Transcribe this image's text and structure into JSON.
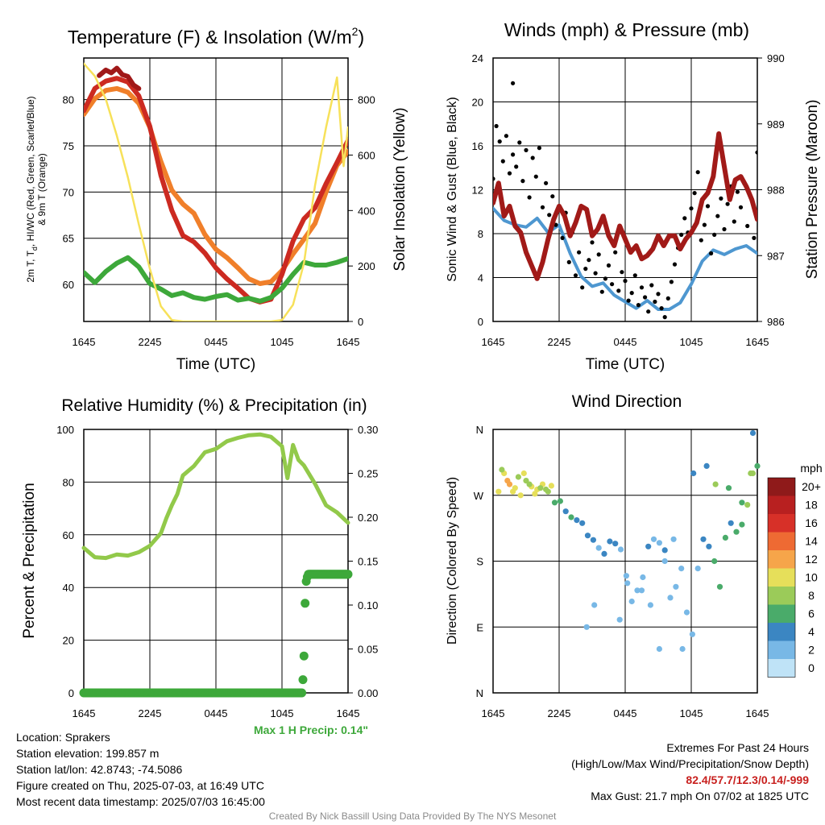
{
  "time_ticks": [
    "1645",
    "2245",
    "0445",
    "1045",
    "1645"
  ],
  "colors": {
    "temp_2m": "#cc2a21",
    "dewpoint": "#3da83a",
    "feels_like": "#a01818",
    "temp_9m": "#f07f2a",
    "insolation": "#f7e15a",
    "sonic_wind": "#4e97d0",
    "gust": "#000000",
    "pressure": "#a11a18",
    "rh": "#92c94a",
    "precip": "#3da83a"
  },
  "chart_data": [
    {
      "type": "line",
      "title": "Temperature (F) & Insolation (W/m",
      "title_sup": "2",
      "title_end": ")",
      "xlabel": "Time (UTC)",
      "ylabel_left_line1": "2m T, T",
      "ylabel_left_sub": "d",
      "ylabel_left_rest": ", HI/WC (Red, Green, Scarlet/Blue)",
      "ylabel_left_line2": "& 9m T (Orange)",
      "ylabel_right": "Solar Insolation (Yellow)",
      "x_range_hours": [
        0,
        24
      ],
      "ylim_left": [
        56,
        84.5
      ],
      "yticks_left": [
        60,
        65,
        70,
        75,
        80
      ],
      "ylim_right": [
        0,
        950
      ],
      "yticks_right": [
        0,
        200,
        400,
        600,
        800
      ],
      "series": [
        {
          "key": "temp_9m",
          "x": [
            0,
            1,
            2,
            3,
            4,
            5,
            6,
            6.5,
            7,
            8,
            9,
            10,
            11,
            12,
            13,
            14,
            15,
            16,
            17,
            18,
            19,
            20,
            21,
            22,
            23,
            24
          ],
          "y": [
            78.4,
            80.1,
            81,
            81.2,
            80.8,
            79.6,
            77,
            75.1,
            73.3,
            70.2,
            68.7,
            67.7,
            65.4,
            63.8,
            62.9,
            61.8,
            60.6,
            60.1,
            60.3,
            61.5,
            63.3,
            64.9,
            66.6,
            70,
            72.9,
            74.4
          ]
        },
        {
          "key": "temp_2m",
          "x": [
            0,
            1,
            2,
            3,
            4,
            5,
            6,
            6.5,
            7,
            8,
            9,
            10,
            11,
            12,
            13,
            14,
            15,
            16,
            17,
            18,
            19,
            20,
            21,
            22,
            23,
            24
          ],
          "y": [
            78.8,
            81.2,
            82,
            82.3,
            81.9,
            80.4,
            77.1,
            74.5,
            71.8,
            68,
            65.3,
            64.6,
            63.4,
            61.8,
            60.6,
            59.6,
            58.5,
            58.1,
            58.4,
            61.1,
            64.7,
            67.1,
            68.3,
            70.9,
            73.2,
            75.6
          ]
        },
        {
          "key": "dewpoint",
          "x": [
            0,
            1,
            2,
            3,
            4,
            5,
            6,
            7,
            8,
            9,
            10,
            11,
            12,
            13,
            14,
            15,
            16,
            17,
            18,
            19,
            20,
            21,
            22,
            23,
            24
          ],
          "y": [
            61.3,
            60.2,
            61.4,
            62.3,
            62.9,
            61.9,
            60.1,
            59.5,
            58.8,
            59.1,
            58.6,
            58.4,
            58.7,
            58.9,
            58.3,
            58.5,
            58.2,
            58.6,
            59.6,
            61.1,
            62.4,
            62.1,
            62.1,
            62.4,
            62.8
          ]
        },
        {
          "key": "feels_like",
          "x": [
            1.4,
            2,
            2.5,
            3,
            3.5,
            4,
            4.5,
            5
          ],
          "y": [
            82.6,
            83.2,
            82.9,
            83.4,
            82.7,
            82.5,
            81.6,
            81.2
          ]
        },
        {
          "key": "insolation",
          "axis": "right",
          "x": [
            0,
            1,
            2,
            3,
            4,
            5,
            6,
            7,
            8,
            9,
            10,
            11,
            12,
            13,
            14,
            15,
            16,
            17,
            18,
            19,
            20,
            21,
            22,
            23,
            23.6,
            24
          ],
          "y": [
            930,
            885,
            802,
            670,
            520,
            350,
            190,
            55,
            5,
            0,
            0,
            0,
            0,
            0,
            0,
            0,
            0,
            0,
            5,
            60,
            210,
            490,
            700,
            880,
            560,
            700
          ]
        }
      ]
    },
    {
      "type": "line",
      "title": "Winds (mph) & Pressure (mb)",
      "xlabel": "Time (UTC)",
      "ylabel_left": "Sonic Wind & Gust (Blue, Black)",
      "ylabel_right": "Station Pressure (Maroon)",
      "x_range_hours": [
        0,
        24
      ],
      "ylim_left": [
        0,
        24
      ],
      "yticks_left": [
        0,
        4,
        8,
        12,
        16,
        20,
        24
      ],
      "ylim_right": [
        986,
        990
      ],
      "yticks_right": [
        986,
        987,
        988,
        989,
        990
      ],
      "series": [
        {
          "key": "sonic_wind",
          "x": [
            0,
            1,
            2,
            3,
            4,
            5,
            6,
            7,
            8,
            9,
            10,
            11,
            12,
            13,
            14,
            15,
            16,
            17,
            18,
            19,
            20,
            21,
            22,
            23,
            24
          ],
          "y": [
            10.3,
            9.2,
            8.8,
            8.6,
            9.4,
            8.1,
            8.8,
            6.2,
            4.1,
            3.2,
            3.5,
            2.4,
            1.8,
            1.2,
            1.9,
            1.1,
            1.1,
            1.7,
            3.4,
            5.5,
            6.5,
            6.1,
            6.6,
            6.9,
            6.2
          ]
        },
        {
          "key": "gust",
          "x": [
            0,
            0.3,
            0.6,
            0.9,
            1.2,
            1.5,
            1.8,
            2.1,
            2.4,
            2.7,
            3,
            3.3,
            3.6,
            3.9,
            4.2,
            4.5,
            4.8,
            5.1,
            5.4,
            5.7,
            6,
            6.3,
            6.6,
            6.9,
            7.2,
            7.5,
            7.8,
            8.1,
            8.4,
            8.7,
            9,
            9.3,
            9.6,
            9.9,
            10.2,
            10.5,
            10.8,
            11.1,
            11.4,
            11.7,
            12,
            12.3,
            12.6,
            12.9,
            13.2,
            13.5,
            13.8,
            14.1,
            14.4,
            14.7,
            15,
            15.3,
            15.6,
            15.9,
            16.2,
            16.5,
            16.8,
            17.1,
            17.4,
            17.7,
            18,
            18.3,
            18.6,
            18.9,
            19.2,
            19.5,
            19.8,
            20.1,
            20.4,
            20.7,
            21,
            21.3,
            21.6,
            21.9,
            22.2,
            22.5,
            22.8,
            23.1,
            23.4,
            23.7,
            24,
            1.8
          ],
          "y": [
            13,
            17.8,
            16.4,
            14.6,
            16.9,
            13.5,
            15.2,
            14.1,
            16.3,
            12.8,
            15.6,
            11.3,
            14.9,
            13.2,
            15.8,
            10.4,
            12.6,
            9.7,
            11.4,
            8.8,
            10.2,
            7.6,
            9.9,
            5.4,
            8.1,
            4.2,
            6.3,
            3.1,
            4.8,
            5.6,
            7.2,
            4.4,
            6.1,
            2.7,
            3.9,
            5.1,
            3.4,
            6.3,
            2.8,
            4.5,
            3.7,
            1.9,
            2.6,
            4.2,
            1.5,
            3.1,
            2.2,
            0.9,
            3.3,
            1.8,
            2.5,
            1.2,
            0.4,
            2.1,
            3.6,
            5.2,
            6.7,
            7.9,
            9.4,
            8.1,
            10.3,
            11.7,
            13.6,
            7.4,
            8.8,
            10.5,
            6.2,
            7.9,
            9.6,
            11.2,
            8.4,
            10.7,
            12.3,
            9.1,
            11.8,
            10.4,
            12.6,
            8.7,
            11.3,
            7.6,
            15.4,
            21.7
          ]
        },
        {
          "key": "pressure",
          "axis": "right",
          "x": [
            0,
            0.5,
            1,
            1.5,
            2,
            2.5,
            3,
            3.5,
            4,
            4.5,
            5,
            5.5,
            6,
            6.5,
            7,
            7.5,
            8,
            8.5,
            9,
            9.5,
            10,
            10.5,
            11,
            11.5,
            12,
            12.5,
            13,
            13.5,
            14,
            14.5,
            15,
            15.5,
            16,
            16.5,
            17,
            17.5,
            18,
            18.5,
            19,
            19.5,
            20,
            20.5,
            21,
            21.5,
            22,
            22.5,
            23,
            23.5,
            24
          ],
          "y": [
            987.8,
            988.1,
            987.6,
            987.75,
            987.45,
            987.35,
            987.05,
            986.85,
            986.65,
            986.9,
            987.25,
            987.55,
            987.75,
            987.6,
            987.3,
            987.5,
            987.75,
            987.7,
            987.3,
            987.4,
            987.6,
            987.3,
            987.15,
            987.45,
            987.25,
            987.05,
            987.15,
            986.95,
            987.0,
            987.1,
            987.3,
            987.15,
            987.3,
            987.3,
            987.1,
            987.25,
            987.35,
            987.5,
            987.85,
            987.95,
            988.2,
            988.85,
            988.35,
            987.85,
            988.15,
            988.2,
            988.05,
            987.85,
            987.55
          ]
        }
      ]
    },
    {
      "type": "line",
      "title": "Relative Humidity (%) & Precipitation (in)",
      "xlabel": "",
      "ylabel_left": "Percent & Precipitation",
      "x_range_hours": [
        0,
        24
      ],
      "ylim_left": [
        0,
        100
      ],
      "yticks_left": [
        0,
        20,
        40,
        60,
        80,
        100
      ],
      "ylim_right": [
        0,
        0.3
      ],
      "yticks_right": [
        "0.00",
        "0.05",
        "0.10",
        "0.15",
        "0.20",
        "0.25",
        "0.30"
      ],
      "annotation": "Max 1 H Precip: 0.14\"",
      "series": [
        {
          "key": "rh",
          "x": [
            0,
            1,
            2,
            3,
            4,
            5,
            6,
            7,
            7.5,
            8,
            8.5,
            9,
            10,
            11,
            12,
            13,
            14,
            15,
            16,
            17,
            18,
            18.5,
            19,
            19.5,
            20,
            21,
            22,
            23,
            24
          ],
          "y": [
            55,
            51.5,
            51.2,
            52.5,
            52.1,
            53.4,
            55.8,
            60.6,
            66.3,
            71.2,
            75.5,
            82.5,
            86.1,
            91.3,
            92.6,
            95.5,
            96.8,
            97.8,
            98.1,
            97.2,
            93.6,
            81.5,
            94.1,
            88.4,
            86.3,
            79.4,
            71.2,
            68.5,
            64.6
          ]
        },
        {
          "key": "precip",
          "axis": "right",
          "x": [
            0,
            19.8,
            19.9,
            20.0,
            20.1,
            20.2,
            20.3,
            20.4,
            20.5,
            24
          ],
          "y": [
            0,
            0,
            0.015,
            0.042,
            0.102,
            0.127,
            0.132,
            0.135,
            0.135,
            0.135
          ]
        }
      ]
    },
    {
      "type": "scatter",
      "title": "Wind Direction",
      "ylabel_left": "Direction (Colored By Speed)",
      "x_range_hours": [
        0,
        24
      ],
      "yticks_left": [
        "N",
        "E",
        "S",
        "W",
        "N"
      ],
      "ylim_left": [
        0,
        360
      ],
      "legend_title": "mph",
      "legend_labels": [
        "20+",
        "18",
        "16",
        "14",
        "12",
        "10",
        "8",
        "6",
        "4",
        "2",
        "0"
      ],
      "legend_colors": [
        "#8f1a1a",
        "#b82020",
        "#d73028",
        "#ee6a33",
        "#f6a54a",
        "#e6df5a",
        "#9bcb59",
        "#4aab6a",
        "#3b86c2",
        "#78b8e6",
        "#bfe3f7"
      ],
      "points": {
        "x": [
          0.5,
          1,
          1.5,
          2,
          2.5,
          3,
          3.5,
          4,
          4.5,
          5,
          0.8,
          1.3,
          1.8,
          2.3,
          2.8,
          3.3,
          3.8,
          4.3,
          4.8,
          5.3,
          5.6,
          6.1,
          6.6,
          7.1,
          7.6,
          8.1,
          8.6,
          9.1,
          9.6,
          10.1,
          10.6,
          11.1,
          11.6,
          12.1,
          12.6,
          13.1,
          13.6,
          14.1,
          14.6,
          15.1,
          15.6,
          16.1,
          16.6,
          17.1,
          17.6,
          18.1,
          18.6,
          19.1,
          19.6,
          20.1,
          20.6,
          21.1,
          21.6,
          22.1,
          22.6,
          23.1,
          23.6,
          24,
          8.5,
          9.2,
          11.5,
          12.2,
          13.5,
          14.3,
          15.1,
          15.6,
          16.4,
          17.2,
          18.2,
          19.4,
          20.2,
          21.4,
          22.6,
          23.4,
          23.6
        ],
        "y": [
          275,
          300,
          285,
          280,
          270,
          290,
          282,
          278,
          285,
          275,
          305,
          290,
          275,
          295,
          300,
          285,
          272,
          280,
          278,
          283,
          260,
          262,
          248,
          240,
          236,
          232,
          215,
          209,
          198,
          190,
          207,
          204,
          196,
          160,
          125,
          140,
          158,
          200,
          210,
          205,
          195,
          130,
          145,
          170,
          110,
          80,
          170,
          210,
          200,
          180,
          145,
          212,
          232,
          220,
          230,
          257,
          300,
          310,
          90,
          120,
          100,
          150,
          140,
          120,
          60,
          180,
          210,
          60,
          300,
          310,
          285,
          280,
          260,
          300,
          355
        ],
        "speed": [
          9,
          10,
          11,
          9,
          10,
          8,
          9,
          10,
          9,
          8,
          7,
          11,
          9,
          8,
          10,
          7,
          9,
          8,
          7,
          9,
          6,
          5,
          4,
          5,
          3,
          4,
          3,
          4,
          2,
          3,
          4,
          3,
          2,
          1,
          2,
          1,
          2,
          3,
          2,
          2,
          3,
          1,
          1,
          2,
          1,
          1,
          2,
          3,
          4,
          5,
          5,
          6,
          4,
          5,
          6,
          7,
          8,
          5,
          1,
          1,
          2,
          1,
          1,
          2,
          1,
          2,
          2,
          1,
          3,
          4,
          7,
          6,
          5,
          7,
          3
        ]
      }
    }
  ],
  "info_left": [
    "Location: Sprakers",
    "Station elevation: 199.857 m",
    "Station lat/lon: 42.8743; -74.5086",
    "Figure created on Thu, 2025-07-03, at 16:49 UTC",
    "Most recent data timestamp: 2025/07/03 16:45:00"
  ],
  "info_right": {
    "line1": "Extremes For Past 24 Hours",
    "line2": "(High/Low/Max Wind/Precipitation/Snow Depth)",
    "extremes": "82.4/57.7/12.3/0.14/-999",
    "max_gust": "Max Gust: 21.7 mph On 07/02 at 1825 UTC"
  },
  "footer": "Created By Nick Bassill Using Data Provided By The NYS Mesonet"
}
